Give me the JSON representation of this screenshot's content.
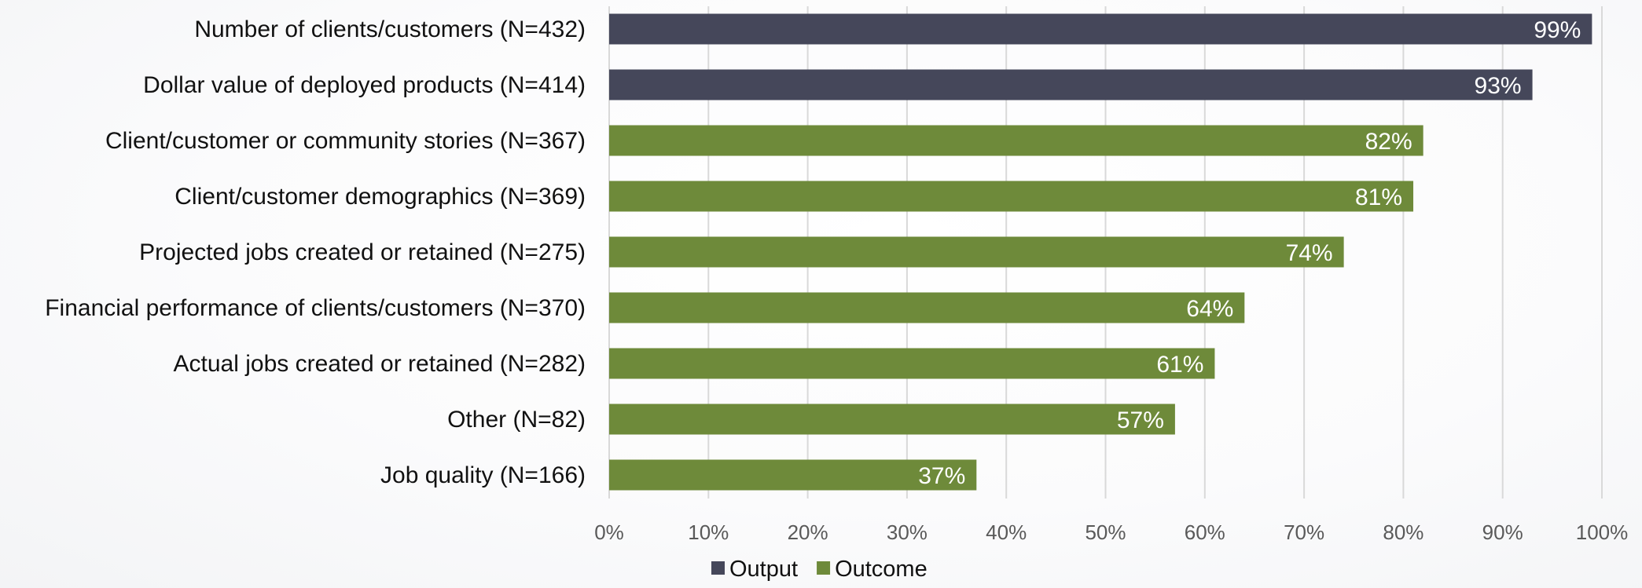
{
  "chart_data": {
    "type": "bar",
    "orientation": "horizontal",
    "title": "",
    "xlabel": "",
    "ylabel": "",
    "xlim": [
      0,
      100
    ],
    "grid": true,
    "legend_position": "bottom",
    "x_tick_labels": [
      "0%",
      "10%",
      "20%",
      "30%",
      "40%",
      "50%",
      "60%",
      "70%",
      "80%",
      "90%",
      "100%"
    ],
    "categories": [
      "Number of clients/customers (N=432)",
      "Dollar value of deployed products (N=414)",
      "Client/customer or community stories (N=367)",
      "Client/customer demographics (N=369)",
      "Projected jobs created or retained (N=275)",
      "Financial performance of clients/customers (N=370)",
      "Actual jobs created or retained (N=282)",
      "Other (N=82)",
      "Job quality (N=166)"
    ],
    "values": [
      99,
      93,
      82,
      81,
      74,
      64,
      61,
      57,
      37
    ],
    "data_labels": [
      "99%",
      "93%",
      "82%",
      "81%",
      "74%",
      "64%",
      "61%",
      "57%",
      "37%"
    ],
    "bar_series": [
      "Output",
      "Output",
      "Outcome",
      "Outcome",
      "Outcome",
      "Outcome",
      "Outcome",
      "Outcome",
      "Outcome"
    ],
    "series": [
      {
        "name": "Output",
        "color": "#45475a"
      },
      {
        "name": "Outcome",
        "color": "#6e8a3a"
      }
    ]
  }
}
